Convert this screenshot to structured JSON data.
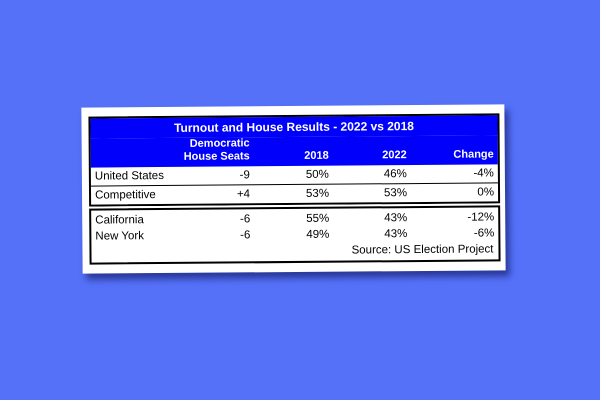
{
  "style": {
    "page_background": "#5571F8",
    "header_background": "#0101FB",
    "header_text_color": "#FFFFFF",
    "body_text_color": "#000000",
    "card_background": "#FFFFFF",
    "border_color": "#000000"
  },
  "chart_data": {
    "type": "table",
    "title": "Turnout and House Results - 2022 vs 2018",
    "columns": [
      "",
      "Democratic House Seats",
      "2018",
      "2022",
      "Change"
    ],
    "rows": [
      [
        "United States",
        "-9",
        "50%",
        "46%",
        "-4%"
      ],
      [
        "Competitive",
        "+4",
        "53%",
        "53%",
        "0%"
      ],
      [
        "California",
        "-6",
        "55%",
        "43%",
        "-12%"
      ],
      [
        "New York",
        "-6",
        "49%",
        "43%",
        "-6%"
      ]
    ],
    "row_groups": [
      {
        "name": "national",
        "row_indexes": [
          0,
          1
        ]
      },
      {
        "name": "states",
        "row_indexes": [
          2,
          3
        ]
      }
    ],
    "source": "Source: US Election Project",
    "layout": {
      "numeric_columns_alignment": "right",
      "label_column_alignment": "left"
    }
  }
}
